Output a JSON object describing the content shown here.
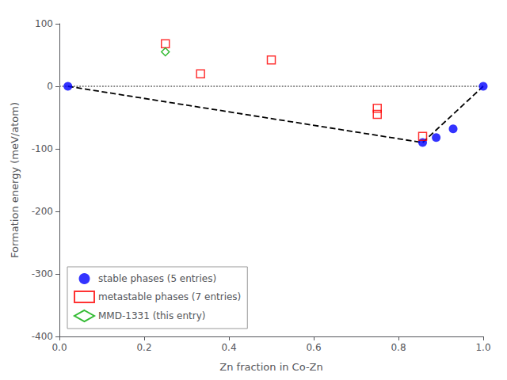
{
  "chart_data": {
    "type": "scatter",
    "title": "",
    "xlabel": "Zn fraction in Co-Zn",
    "ylabel": "Formation energy (meV/atom)",
    "xlim": [
      0.0,
      1.0
    ],
    "ylim": [
      -400,
      100
    ],
    "xticks": [
      {
        "value": 0.0,
        "label": "0.0"
      },
      0.2,
      0.4,
      0.6,
      0.8,
      {
        "value": 1.0,
        "label": "1.0"
      }
    ],
    "yticks": [
      -400,
      -300,
      -200,
      -100,
      0,
      100
    ],
    "grid": false,
    "legend": "lower left",
    "series": [
      {
        "type": "line",
        "line_style": "dotted",
        "color": "#888888",
        "x": [
          0.0,
          1.0
        ],
        "values": [
          0.0,
          0.0
        ]
      },
      {
        "type": "line",
        "line_style": "dashed",
        "color": "#000000",
        "x": [
          0.02,
          0.857,
          1.0
        ],
        "values": [
          0.0,
          -90.0,
          0.0
        ]
      },
      {
        "type": "scatter",
        "name": "stable phases (5 entries)",
        "marker": "circle",
        "color": "#0000ff",
        "x": [
          0.02,
          0.857,
          0.889,
          0.929,
          1.0
        ],
        "values": [
          0.0,
          -90.0,
          -82.0,
          -68.0,
          0.0
        ]
      },
      {
        "type": "scatter",
        "name": "metastable phases (7 entries)",
        "marker": "open_square",
        "color": "#ff0000",
        "x": [
          0.25,
          0.333,
          0.5,
          0.75,
          0.75,
          0.857
        ],
        "values": [
          68.0,
          20.0,
          42.0,
          -35.0,
          -45.0,
          -80.0
        ]
      },
      {
        "type": "scatter",
        "name": "MMD-1331 (this entry)",
        "marker": "open_diamond",
        "color": "#00aa00",
        "x": [
          0.25
        ],
        "values": [
          55.0
        ]
      }
    ]
  }
}
